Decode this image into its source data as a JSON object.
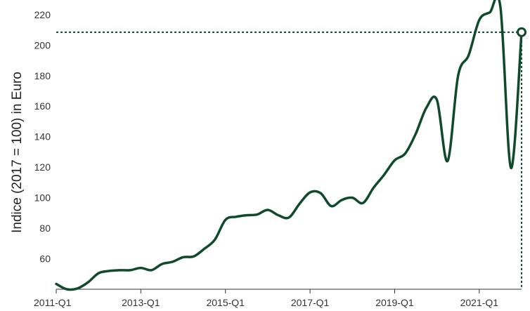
{
  "chart_data": {
    "type": "line",
    "title": "",
    "xlabel": "",
    "ylabel": "Indice (2017 = 100) in Euro",
    "ylim": [
      40,
      225
    ],
    "yticks": [
      60,
      80,
      100,
      120,
      140,
      160,
      180,
      200,
      220
    ],
    "xticks": [
      "2011-Q1",
      "2013-Q1",
      "2015-Q1",
      "2017-Q1",
      "2019-Q1",
      "2021-Q1"
    ],
    "grid": false,
    "legend": "none",
    "colors": {
      "line": "#0f4a2c",
      "reference": "#0f4a2c"
    },
    "reference_value": 208.5,
    "x": [
      "2011-Q1",
      "2011-Q2",
      "2011-Q3",
      "2011-Q4",
      "2012-Q1",
      "2012-Q2",
      "2012-Q3",
      "2012-Q4",
      "2013-Q1",
      "2013-Q2",
      "2013-Q3",
      "2013-Q4",
      "2014-Q1",
      "2014-Q2",
      "2014-Q3",
      "2014-Q4",
      "2015-Q1",
      "2015-Q2",
      "2015-Q3",
      "2015-Q4",
      "2016-Q1",
      "2016-Q2",
      "2016-Q3",
      "2016-Q4",
      "2017-Q1",
      "2017-Q2",
      "2017-Q3",
      "2017-Q4",
      "2018-Q1",
      "2018-Q2",
      "2018-Q3",
      "2018-Q4",
      "2019-Q1",
      "2019-Q2",
      "2019-Q3",
      "2019-Q4",
      "2020-Q1",
      "2020-Q2",
      "2020-Q3",
      "2020-Q4",
      "2021-Q1",
      "2021-Q2",
      "2021-Q3",
      "2021-Q4",
      "2022-Q1"
    ],
    "values": [
      43.5,
      40,
      40.5,
      44.5,
      50.5,
      52,
      52.5,
      52.5,
      54,
      52.5,
      56.5,
      58,
      61,
      61.5,
      66.5,
      72.5,
      85.5,
      87.5,
      88.5,
      89,
      92,
      88.5,
      87,
      96,
      103.5,
      103,
      94.5,
      98.5,
      100,
      96.5,
      106.5,
      115,
      124.5,
      129,
      142,
      159,
      164,
      124,
      180,
      193.5,
      216.5,
      221.5,
      225,
      119.5,
      208.5
    ]
  }
}
